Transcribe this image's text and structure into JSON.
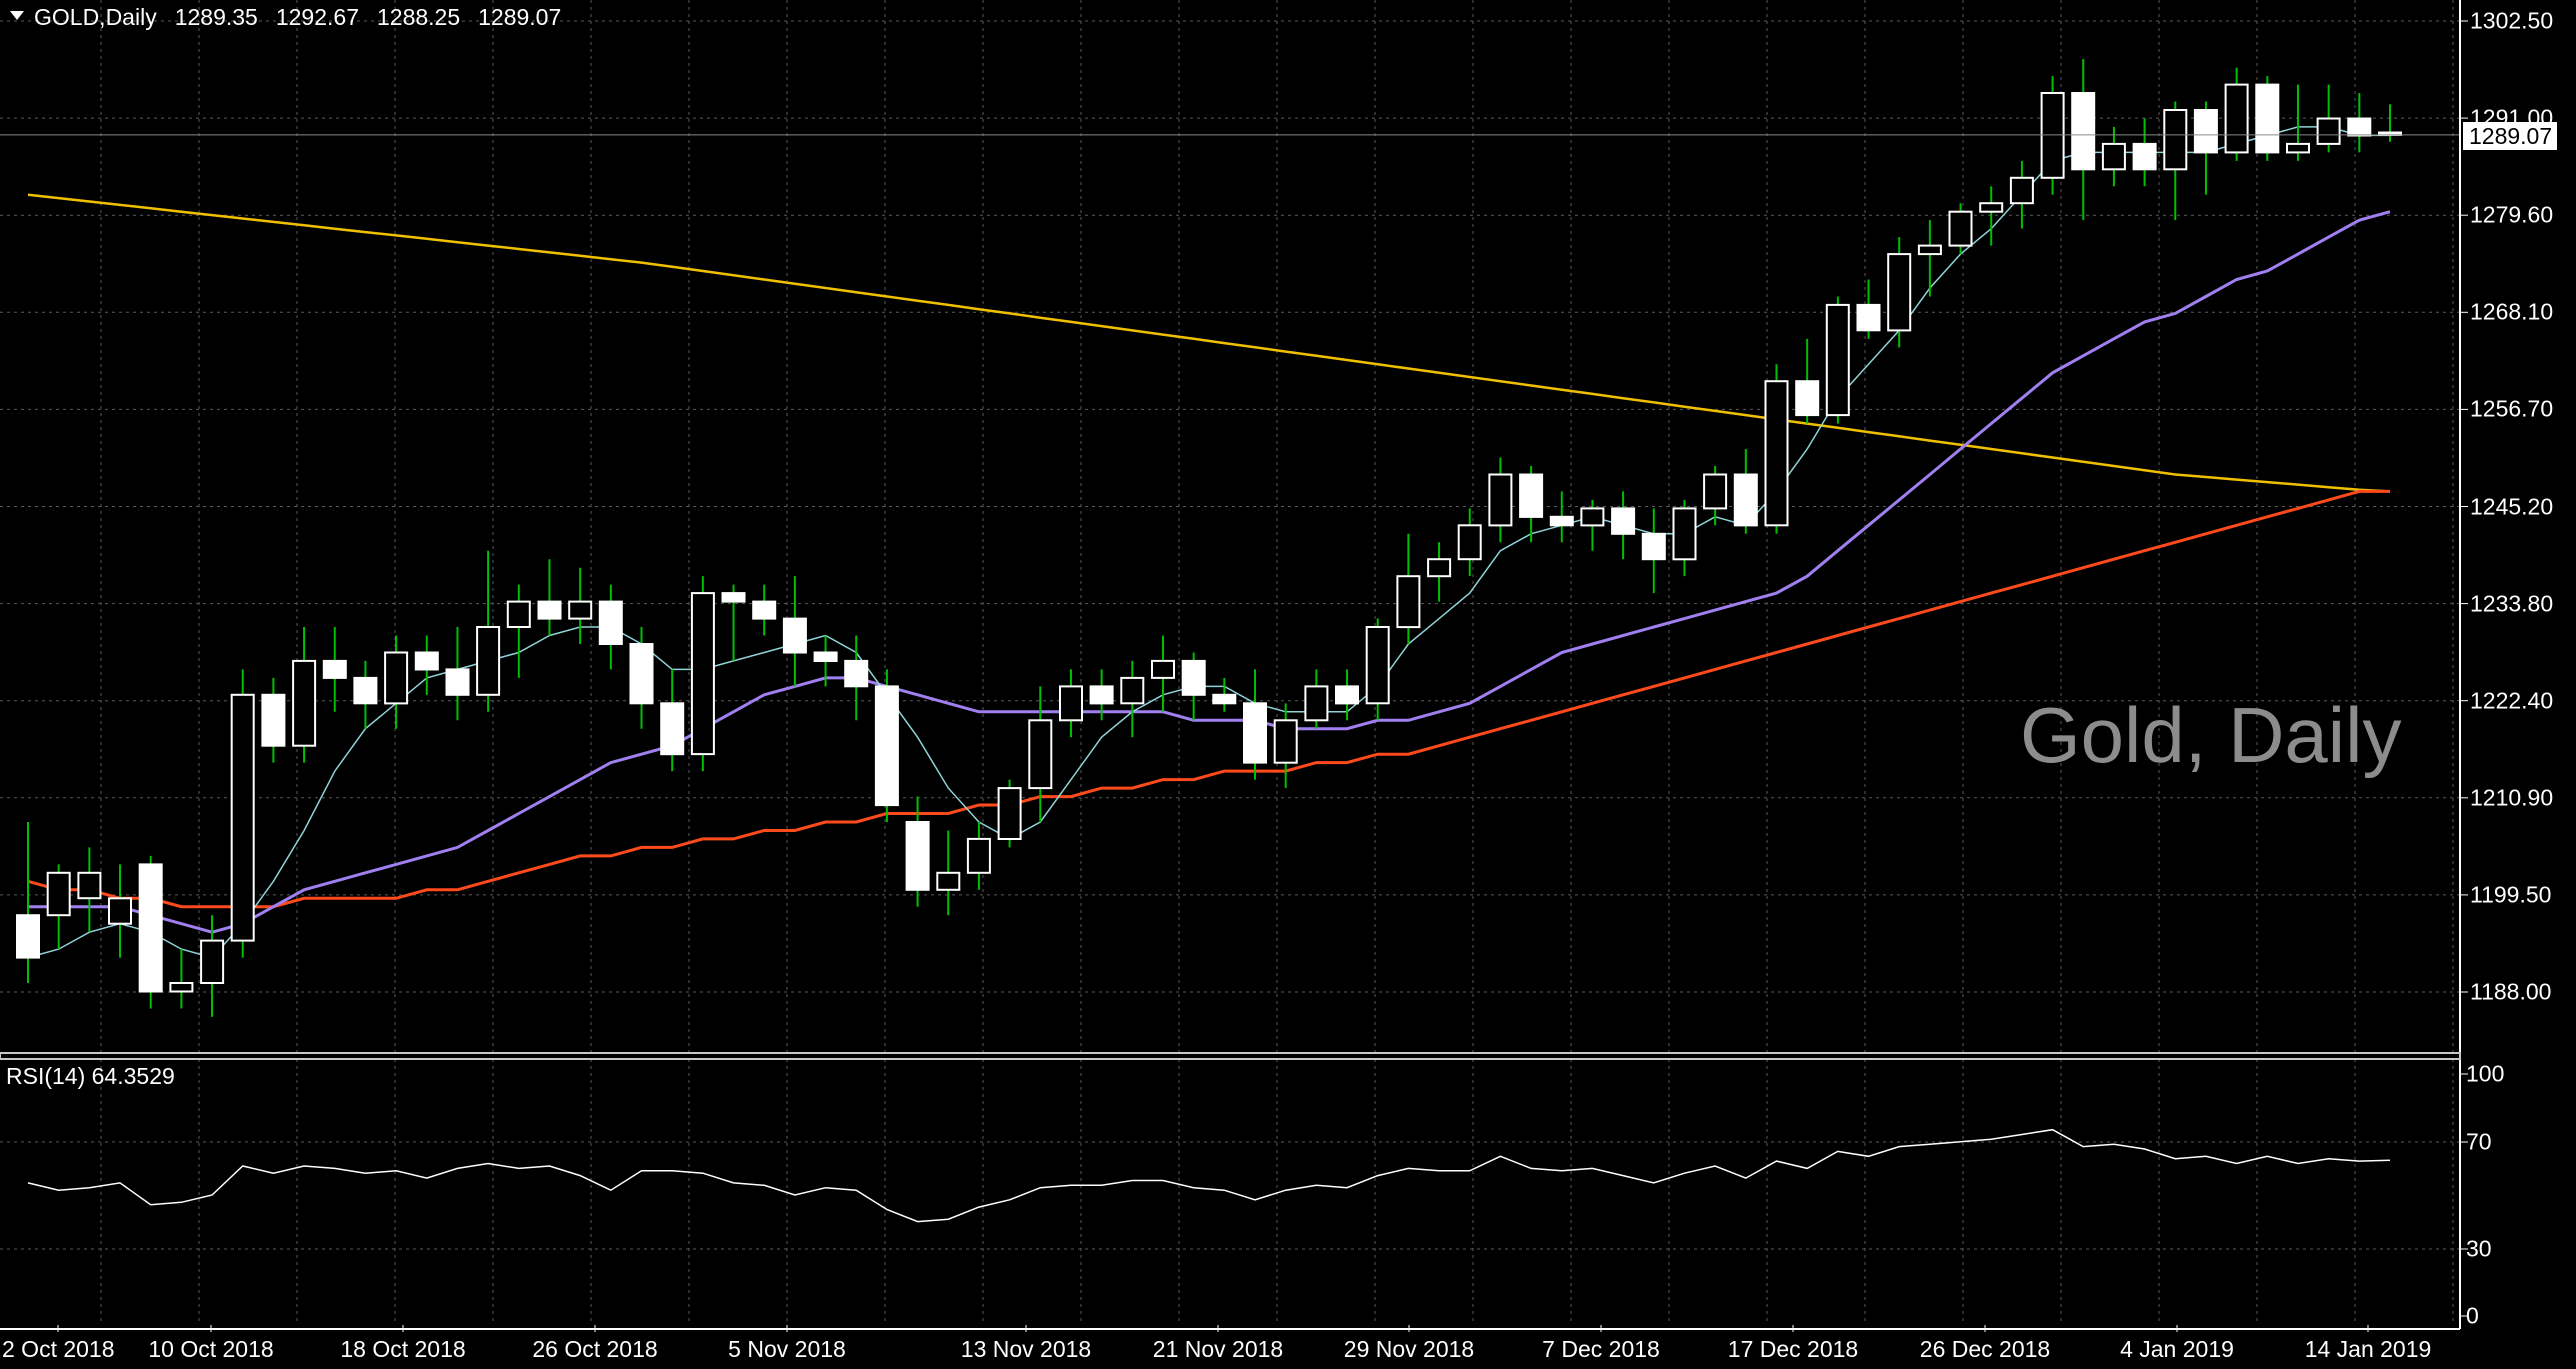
{
  "header": {
    "symbol": "GOLD,Daily",
    "open": "1289.35",
    "high": "1292.67",
    "low": "1288.25",
    "close": "1289.07"
  },
  "watermark": "Gold, Daily",
  "current_price_label": "1289.07",
  "rsi_label": "RSI(14) 64.3529",
  "colors": {
    "background": "#000000",
    "grid": "#5a5a5a",
    "candle": "#ffffff",
    "wick": "#00c000",
    "ma_fast": "#8fd3d8",
    "ma_mid": "#a080f0",
    "ma_slow": "#ff4a1c",
    "ma_long": "#f0c000",
    "rsi_line": "#ffffff"
  },
  "chart_data": [
    {
      "type": "candlestick",
      "title": "GOLD,Daily",
      "y_ticks": [
        "1302.50",
        "1291.00",
        "1279.60",
        "1268.10",
        "1256.70",
        "1245.20",
        "1233.80",
        "1222.40",
        "1210.90",
        "1199.50",
        "1188.00"
      ],
      "x_ticks": [
        "2 Oct 2018",
        "10 Oct 2018",
        "18 Oct 2018",
        "26 Oct 2018",
        "5 Nov 2018",
        "13 Nov 2018",
        "21 Nov 2018",
        "29 Nov 2018",
        "7 Dec 2018",
        "17 Dec 2018",
        "26 Dec 2018",
        "4 Jan 2019",
        "14 Jan 2019"
      ],
      "ylim": [
        1181,
        1305
      ],
      "grid": true,
      "ohlc": [
        [
          1197,
          1208,
          1189,
          1192
        ],
        [
          1197,
          1203,
          1193,
          1202
        ],
        [
          1199,
          1205,
          1195,
          1202
        ],
        [
          1196,
          1203,
          1192,
          1199
        ],
        [
          1203,
          1204,
          1186,
          1188
        ],
        [
          1188,
          1193,
          1186,
          1189
        ],
        [
          1189,
          1197,
          1185,
          1194
        ],
        [
          1194,
          1226,
          1192,
          1223
        ],
        [
          1223,
          1225,
          1215,
          1217
        ],
        [
          1217,
          1231,
          1215,
          1227
        ],
        [
          1227,
          1231,
          1221,
          1225
        ],
        [
          1225,
          1227,
          1219,
          1222
        ],
        [
          1222,
          1230,
          1219,
          1228
        ],
        [
          1228,
          1230,
          1223,
          1226
        ],
        [
          1226,
          1231,
          1220,
          1223
        ],
        [
          1223,
          1240,
          1221,
          1231
        ],
        [
          1231,
          1236,
          1225,
          1234
        ],
        [
          1234,
          1239,
          1230,
          1232
        ],
        [
          1232,
          1238,
          1229,
          1234
        ],
        [
          1234,
          1236,
          1226,
          1229
        ],
        [
          1229,
          1231,
          1219,
          1222
        ],
        [
          1222,
          1226,
          1214,
          1216
        ],
        [
          1216,
          1237,
          1214,
          1235
        ],
        [
          1235,
          1236,
          1227,
          1234
        ],
        [
          1234,
          1236,
          1230,
          1232
        ],
        [
          1232,
          1237,
          1224,
          1228
        ],
        [
          1228,
          1230,
          1224,
          1227
        ],
        [
          1227,
          1230,
          1220,
          1224
        ],
        [
          1224,
          1226,
          1208,
          1210
        ],
        [
          1208,
          1211,
          1198,
          1200
        ],
        [
          1200,
          1207,
          1197,
          1202
        ],
        [
          1202,
          1208,
          1200,
          1206
        ],
        [
          1206,
          1213,
          1205,
          1212
        ],
        [
          1212,
          1224,
          1208,
          1220
        ],
        [
          1220,
          1226,
          1218,
          1224
        ],
        [
          1224,
          1226,
          1220,
          1222
        ],
        [
          1222,
          1227,
          1218,
          1225
        ],
        [
          1225,
          1230,
          1221,
          1227
        ],
        [
          1227,
          1228,
          1220,
          1223
        ],
        [
          1223,
          1225,
          1221,
          1222
        ],
        [
          1222,
          1226,
          1213,
          1215
        ],
        [
          1215,
          1222,
          1212,
          1220
        ],
        [
          1220,
          1226,
          1219,
          1224
        ],
        [
          1224,
          1226,
          1220,
          1222
        ],
        [
          1222,
          1232,
          1220,
          1231
        ],
        [
          1231,
          1242,
          1229,
          1237
        ],
        [
          1237,
          1241,
          1234,
          1239
        ],
        [
          1239,
          1245,
          1237,
          1243
        ],
        [
          1243,
          1251,
          1241,
          1249
        ],
        [
          1249,
          1250,
          1241,
          1244
        ],
        [
          1244,
          1247,
          1241,
          1243
        ],
        [
          1243,
          1246,
          1240,
          1245
        ],
        [
          1245,
          1247,
          1239,
          1242
        ],
        [
          1242,
          1245,
          1235,
          1239
        ],
        [
          1239,
          1246,
          1237,
          1245
        ],
        [
          1245,
          1250,
          1243,
          1249
        ],
        [
          1249,
          1252,
          1242,
          1243
        ],
        [
          1243,
          1262,
          1242,
          1260
        ],
        [
          1260,
          1265,
          1255,
          1256
        ],
        [
          1256,
          1270,
          1255,
          1269
        ],
        [
          1269,
          1272,
          1265,
          1266
        ],
        [
          1266,
          1277,
          1264,
          1275
        ],
        [
          1275,
          1279,
          1270,
          1276
        ],
        [
          1276,
          1281,
          1275,
          1280
        ],
        [
          1280,
          1283,
          1276,
          1281
        ],
        [
          1281,
          1286,
          1278,
          1284
        ],
        [
          1284,
          1296,
          1282,
          1294
        ],
        [
          1294,
          1298,
          1279,
          1285
        ],
        [
          1285,
          1290,
          1283,
          1288
        ],
        [
          1288,
          1291,
          1283,
          1285
        ],
        [
          1285,
          1293,
          1279,
          1292
        ],
        [
          1292,
          1293,
          1282,
          1287
        ],
        [
          1287,
          1297,
          1286,
          1295
        ],
        [
          1295,
          1296,
          1286,
          1287
        ],
        [
          1287,
          1295,
          1286,
          1288
        ],
        [
          1288,
          1295,
          1287,
          1291
        ],
        [
          1291,
          1294,
          1287,
          1289
        ],
        [
          1289.35,
          1292.67,
          1288.25,
          1289.07
        ]
      ],
      "ma_fast": [
        1192,
        1193,
        1195,
        1196,
        1195,
        1193,
        1192,
        1196,
        1201,
        1207,
        1214,
        1219,
        1222,
        1225,
        1226,
        1227,
        1228,
        1230,
        1231,
        1231,
        1229,
        1226,
        1226,
        1227,
        1228,
        1229,
        1230,
        1228,
        1223,
        1218,
        1212,
        1208,
        1206,
        1208,
        1213,
        1218,
        1221,
        1223,
        1224,
        1224,
        1222,
        1221,
        1221,
        1221,
        1224,
        1229,
        1232,
        1235,
        1240,
        1242,
        1243,
        1244,
        1243,
        1242,
        1242,
        1244,
        1243,
        1247,
        1252,
        1258,
        1262,
        1266,
        1271,
        1275,
        1278,
        1282,
        1286,
        1287,
        1287,
        1287,
        1287,
        1287,
        1288,
        1289,
        1290,
        1290,
        1289,
        1289
      ],
      "ma_mid": [
        1198,
        1198,
        1198,
        1198,
        1197,
        1196,
        1195,
        1196,
        1198,
        1200,
        1201,
        1202,
        1203,
        1204,
        1205,
        1207,
        1209,
        1211,
        1213,
        1215,
        1216,
        1217,
        1219,
        1221,
        1223,
        1224,
        1225,
        1225,
        1224,
        1223,
        1222,
        1221,
        1221,
        1221,
        1221,
        1221,
        1221,
        1221,
        1220,
        1220,
        1220,
        1219,
        1219,
        1219,
        1220,
        1220,
        1221,
        1222,
        1224,
        1226,
        1228,
        1229,
        1230,
        1231,
        1232,
        1233,
        1234,
        1235,
        1237,
        1240,
        1243,
        1246,
        1249,
        1252,
        1255,
        1258,
        1261,
        1263,
        1265,
        1267,
        1268,
        1270,
        1272,
        1273,
        1275,
        1277,
        1279,
        1280
      ],
      "ma_slow": [
        1201,
        1200,
        1200,
        1199,
        1199,
        1198,
        1198,
        1198,
        1198,
        1199,
        1199,
        1199,
        1199,
        1200,
        1200,
        1201,
        1202,
        1203,
        1204,
        1204,
        1205,
        1205,
        1206,
        1206,
        1207,
        1207,
        1208,
        1208,
        1209,
        1209,
        1209,
        1210,
        1210,
        1211,
        1211,
        1212,
        1212,
        1213,
        1213,
        1214,
        1214,
        1214,
        1215,
        1215,
        1216,
        1216,
        1217,
        1218,
        1219,
        1220,
        1221,
        1222,
        1223,
        1224,
        1225,
        1226,
        1227,
        1228,
        1229,
        1230,
        1231,
        1232,
        1233,
        1234,
        1235,
        1236,
        1237,
        1238,
        1239,
        1240,
        1241,
        1242,
        1243,
        1244,
        1245,
        1246,
        1247,
        1247
      ],
      "ma_long": [
        1282,
        1281.6,
        1281.2,
        1280.8,
        1280.4,
        1280,
        1279.6,
        1279.2,
        1278.8,
        1278.4,
        1278,
        1277.6,
        1277.2,
        1276.8,
        1276.4,
        1276,
        1275.6,
        1275.2,
        1274.8,
        1274.4,
        1274,
        1273.5,
        1273,
        1272.5,
        1272,
        1271.5,
        1271,
        1270.5,
        1270,
        1269.5,
        1269,
        1268.5,
        1268,
        1267.5,
        1267,
        1266.5,
        1266,
        1265.5,
        1265,
        1264.5,
        1264,
        1263.5,
        1263,
        1262.5,
        1262,
        1261.5,
        1261,
        1260.5,
        1260,
        1259.5,
        1259,
        1258.5,
        1258,
        1257.5,
        1257,
        1256.5,
        1256,
        1255.5,
        1255,
        1254.5,
        1254,
        1253.5,
        1253,
        1252.5,
        1252,
        1251.5,
        1251,
        1250.5,
        1250,
        1249.5,
        1249,
        1248.7,
        1248.4,
        1248.1,
        1247.8,
        1247.5,
        1247.2,
        1247
      ]
    },
    {
      "type": "line",
      "title": "RSI(14) 64.3529",
      "y_ticks": [
        "100",
        "70",
        "30",
        "0"
      ],
      "ylim": [
        0,
        100
      ],
      "grid": true,
      "series": [
        {
          "values": [
            55,
            52,
            53,
            55,
            46,
            47,
            50,
            62,
            59,
            62,
            61,
            59,
            60,
            57,
            61,
            63,
            61,
            62,
            58,
            52,
            60,
            60,
            59,
            55,
            54,
            50,
            53,
            52,
            44,
            39,
            40,
            45,
            48,
            53,
            54,
            54,
            56,
            56,
            53,
            52,
            48,
            52,
            54,
            53,
            58,
            61,
            60,
            60,
            66,
            61,
            60,
            61,
            58,
            55,
            59,
            62,
            57,
            64,
            61,
            68,
            66,
            70,
            71,
            72,
            73,
            75,
            77,
            70,
            71,
            69,
            65,
            66,
            63,
            66,
            63,
            65,
            64,
            64.35
          ]
        }
      ]
    }
  ]
}
